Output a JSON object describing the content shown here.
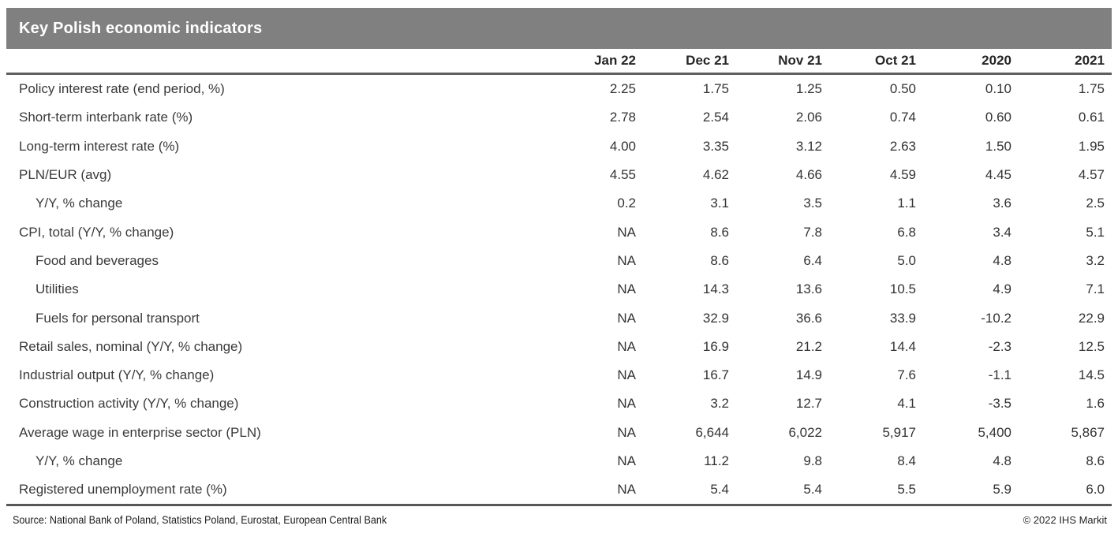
{
  "title": "Key Polish economic indicators",
  "table": {
    "columns": [
      "Jan 22",
      "Dec 21",
      "Nov 21",
      "Oct 21",
      "2020",
      "2021"
    ],
    "rows": [
      {
        "label": "Policy interest rate (end period, %)",
        "indent": false,
        "values": [
          "2.25",
          "1.75",
          "1.25",
          "0.50",
          "0.10",
          "1.75"
        ]
      },
      {
        "label": "Short-term interbank rate (%)",
        "indent": false,
        "values": [
          "2.78",
          "2.54",
          "2.06",
          "0.74",
          "0.60",
          "0.61"
        ]
      },
      {
        "label": "Long-term interest rate (%)",
        "indent": false,
        "values": [
          "4.00",
          "3.35",
          "3.12",
          "2.63",
          "1.50",
          "1.95"
        ]
      },
      {
        "label": "PLN/EUR (avg)",
        "indent": false,
        "values": [
          "4.55",
          "4.62",
          "4.66",
          "4.59",
          "4.45",
          "4.57"
        ]
      },
      {
        "label": "Y/Y, % change",
        "indent": true,
        "values": [
          "0.2",
          "3.1",
          "3.5",
          "1.1",
          "3.6",
          "2.5"
        ]
      },
      {
        "label": "CPI, total (Y/Y, % change)",
        "indent": false,
        "values": [
          "NA",
          "8.6",
          "7.8",
          "6.8",
          "3.4",
          "5.1"
        ]
      },
      {
        "label": "Food and beverages",
        "indent": true,
        "values": [
          "NA",
          "8.6",
          "6.4",
          "5.0",
          "4.8",
          "3.2"
        ]
      },
      {
        "label": "Utilities",
        "indent": true,
        "values": [
          "NA",
          "14.3",
          "13.6",
          "10.5",
          "4.9",
          "7.1"
        ]
      },
      {
        "label": "Fuels for personal transport",
        "indent": true,
        "values": [
          "NA",
          "32.9",
          "36.6",
          "33.9",
          "-10.2",
          "22.9"
        ]
      },
      {
        "label": "Retail sales, nominal (Y/Y, % change)",
        "indent": false,
        "values": [
          "NA",
          "16.9",
          "21.2",
          "14.4",
          "-2.3",
          "12.5"
        ]
      },
      {
        "label": "Industrial output (Y/Y, % change)",
        "indent": false,
        "values": [
          "NA",
          "16.7",
          "14.9",
          "7.6",
          "-1.1",
          "14.5"
        ]
      },
      {
        "label": "Construction activity (Y/Y, % change)",
        "indent": false,
        "values": [
          "NA",
          "3.2",
          "12.7",
          "4.1",
          "-3.5",
          "1.6"
        ]
      },
      {
        "label": "Average wage in enterprise sector (PLN)",
        "indent": false,
        "values": [
          "NA",
          "6,644",
          "6,022",
          "5,917",
          "5,400",
          "5,867"
        ]
      },
      {
        "label": "Y/Y, % change",
        "indent": true,
        "values": [
          "NA",
          "11.2",
          "9.8",
          "8.4",
          "4.8",
          "8.6"
        ]
      },
      {
        "label": "Registered unemployment rate (%)",
        "indent": false,
        "values": [
          "NA",
          "5.4",
          "5.4",
          "5.5",
          "5.9",
          "6.0"
        ]
      }
    ]
  },
  "footer": {
    "source": "Source: National Bank of Poland, Statistics Poland, Eurostat, European Central Bank",
    "copyright": "© 2022 IHS Markit"
  },
  "colors": {
    "title_bar_background": "#808080",
    "title_text": "#ffffff",
    "header_text": "#262626",
    "body_text": "#333333",
    "rule_gray": "#5f5f5f"
  }
}
